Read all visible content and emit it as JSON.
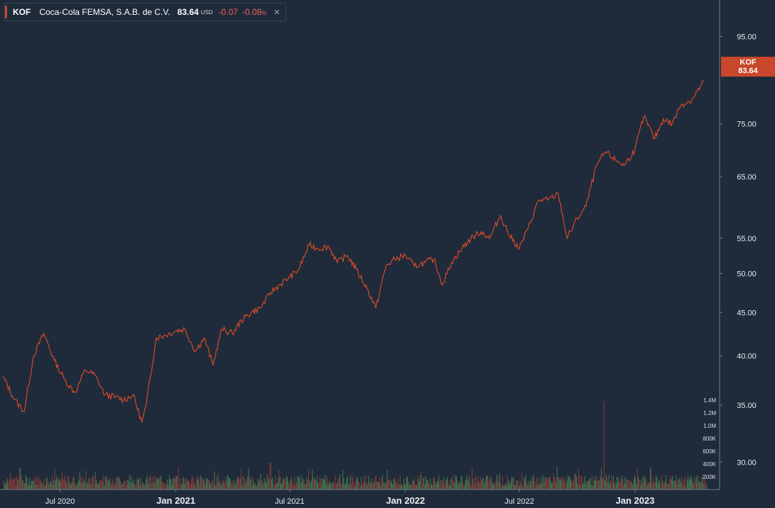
{
  "legend": {
    "ticker": "KOF",
    "name": "Coca-Cola FEMSA, S.A.B. de C.V.",
    "price": "83.64",
    "currency": "USD",
    "change": "-0.07",
    "change_pct": "-0.08",
    "pct_symbol": "%",
    "close_icon": "×"
  },
  "price_tag": {
    "ticker": "KOF",
    "price": "83.64"
  },
  "colors": {
    "background": "#1f2b3a",
    "line": "#d2492b",
    "volume_up": "#4e8a52",
    "volume_down": "#9b3d3b",
    "tag": "#c9472b"
  },
  "chart_data": {
    "type": "line",
    "series": [
      {
        "name": "KOF",
        "x": [
          "2020-04-01",
          "2020-04-20",
          "2020-05-05",
          "2020-05-20",
          "2020-06-05",
          "2020-06-22",
          "2020-07-08",
          "2020-07-25",
          "2020-08-10",
          "2020-08-25",
          "2020-09-10",
          "2020-09-25",
          "2020-10-10",
          "2020-10-25",
          "2020-11-08",
          "2020-11-15",
          "2020-12-01",
          "2020-12-15",
          "2021-01-01",
          "2021-01-15",
          "2021-02-01",
          "2021-02-15",
          "2021-03-01",
          "2021-03-15",
          "2021-04-01",
          "2021-04-15",
          "2021-05-01",
          "2021-05-15",
          "2021-06-01",
          "2021-06-15",
          "2021-07-01",
          "2021-07-15",
          "2021-08-01",
          "2021-08-15",
          "2021-09-01",
          "2021-09-15",
          "2021-10-01",
          "2021-10-15",
          "2021-11-01",
          "2021-11-15",
          "2021-12-01",
          "2021-12-15",
          "2022-01-01",
          "2022-01-15",
          "2022-02-01",
          "2022-02-15",
          "2022-03-01",
          "2022-03-15",
          "2022-04-01",
          "2022-04-15",
          "2022-05-01",
          "2022-05-15",
          "2022-06-01",
          "2022-06-15",
          "2022-07-01",
          "2022-07-15",
          "2022-08-01",
          "2022-08-15",
          "2022-09-01",
          "2022-09-15",
          "2022-10-01",
          "2022-10-15",
          "2022-11-01",
          "2022-11-15",
          "2022-12-01",
          "2022-12-15",
          "2023-01-01",
          "2023-01-15",
          "2023-02-01",
          "2023-02-15",
          "2023-03-01",
          "2023-03-15",
          "2023-04-01",
          "2023-04-20"
        ],
        "values": [
          37.8,
          35.5,
          34.4,
          40.0,
          42.5,
          39.5,
          37.5,
          36.2,
          38.5,
          38.0,
          36.0,
          35.8,
          35.5,
          36.0,
          33.4,
          35.0,
          42.0,
          42.3,
          42.8,
          43.0,
          40.5,
          42.0,
          39.0,
          43.0,
          42.5,
          44.0,
          45.0,
          45.5,
          47.5,
          48.5,
          49.5,
          50.5,
          54.0,
          53.5,
          53.8,
          51.5,
          52.5,
          50.5,
          48.0,
          45.5,
          51.0,
          52.0,
          52.5,
          51.0,
          51.5,
          52.0,
          48.5,
          51.5,
          53.5,
          55.0,
          56.0,
          55.0,
          58.5,
          55.5,
          53.5,
          56.5,
          61.0,
          61.0,
          62.0,
          55.0,
          58.0,
          60.0,
          67.0,
          69.5,
          68.0,
          67.0,
          70.0,
          76.5,
          72.0,
          76.0,
          75.0,
          79.0,
          80.0,
          84.0
        ]
      }
    ],
    "y_ticks": [
      "95.00",
      "75.00",
      "65.00",
      "55.00",
      "50.00",
      "45.00",
      "40.00",
      "35.00",
      "30.00"
    ],
    "x_ticks": [
      "Jul 2020",
      "Jan 2021",
      "Jul 2021",
      "Jan 2022",
      "Jul 2022",
      "Jan 2023"
    ],
    "volume_ticks": [
      "1.4M",
      "1.2M",
      "1.0M",
      "800K",
      "600K",
      "400K",
      "200K"
    ],
    "ylim": [
      29.5,
      99
    ],
    "y_scale": "log",
    "volume_ylim": [
      0,
      1500000
    ],
    "grid": false
  }
}
